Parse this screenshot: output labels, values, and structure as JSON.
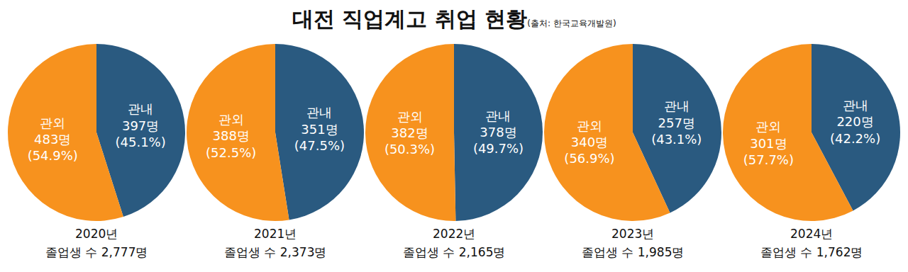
{
  "title": "대전 직업계고 취업 현황",
  "source": "(출처: 한국교육개발원)",
  "chart_data": [
    {
      "type": "pie",
      "title": "2020년",
      "subtitle": "졸업생 수 2,777명",
      "categories": [
        "관내",
        "관외"
      ],
      "values": [
        45.1,
        54.9
      ],
      "value_labels": [
        "(45.1%)",
        "(54.9%)"
      ],
      "count_labels": [
        "397명",
        "483명"
      ],
      "colors": [
        "#2a5a80",
        "#f7921e"
      ],
      "data_labels": true
    },
    {
      "type": "pie",
      "title": "2021년",
      "subtitle": "졸업생 수 2,373명",
      "categories": [
        "관내",
        "관외"
      ],
      "values": [
        47.5,
        52.5
      ],
      "value_labels": [
        "(47.5%)",
        "(52.5%)"
      ],
      "count_labels": [
        "351명",
        "388명"
      ],
      "colors": [
        "#2a5a80",
        "#f7921e"
      ],
      "data_labels": true
    },
    {
      "type": "pie",
      "title": "2022년",
      "subtitle": "졸업생 수 2,165명",
      "categories": [
        "관내",
        "관외"
      ],
      "values": [
        49.7,
        50.3
      ],
      "value_labels": [
        "(49.7%)",
        "(50.3%)"
      ],
      "count_labels": [
        "378명",
        "382명"
      ],
      "colors": [
        "#2a5a80",
        "#f7921e"
      ],
      "data_labels": true
    },
    {
      "type": "pie",
      "title": "2023년",
      "subtitle": "졸업생 수 1,985명",
      "categories": [
        "관내",
        "관외"
      ],
      "values": [
        43.1,
        56.9
      ],
      "value_labels": [
        "(43.1%)",
        "(56.9%)"
      ],
      "count_labels": [
        "257명",
        "340명"
      ],
      "colors": [
        "#2a5a80",
        "#f7921e"
      ],
      "data_labels": true
    },
    {
      "type": "pie",
      "title": "2024년",
      "subtitle": "졸업생 수 1,762명",
      "categories": [
        "관내",
        "관외"
      ],
      "values": [
        42.2,
        57.7
      ],
      "value_labels": [
        "(42.2%)",
        "(57.7%)"
      ],
      "count_labels": [
        "220명",
        "301명"
      ],
      "colors": [
        "#2a5a80",
        "#f7921e"
      ],
      "data_labels": true
    }
  ]
}
